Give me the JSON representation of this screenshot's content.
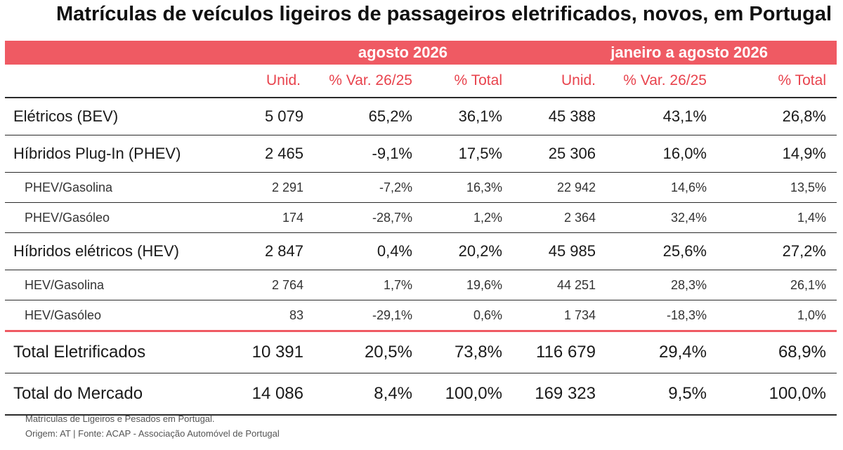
{
  "title": "Matrículas de veículos ligeiros de passageiros eletrificados, novos, em Portugal",
  "colors": {
    "accent": "#ef5a63",
    "header_text": "#e8434d",
    "text": "#1a1a1a"
  },
  "chart_data": {
    "type": "table",
    "groups": [
      "agosto 2026",
      "janeiro a agosto 2026"
    ],
    "columns": [
      "Unid.",
      "% Var. 26/25",
      "% Total",
      "Unid.",
      "% Var. 26/25",
      "% Total"
    ],
    "rows": [
      {
        "label": "Elétricos (BEV)",
        "level": "main",
        "values": [
          "5 079",
          "65,2%",
          "36,1%",
          "45 388",
          "43,1%",
          "26,8%"
        ]
      },
      {
        "label": "Híbridos Plug-In (PHEV)",
        "level": "main",
        "values": [
          "2 465",
          "-9,1%",
          "17,5%",
          "25 306",
          "16,0%",
          "14,9%"
        ]
      },
      {
        "label": "PHEV/Gasolina",
        "level": "sub",
        "values": [
          "2 291",
          "-7,2%",
          "16,3%",
          "22 942",
          "14,6%",
          "13,5%"
        ]
      },
      {
        "label": "PHEV/Gasóleo",
        "level": "sub",
        "values": [
          "174",
          "-28,7%",
          "1,2%",
          "2 364",
          "32,4%",
          "1,4%"
        ]
      },
      {
        "label": "Híbridos elétricos (HEV)",
        "level": "main",
        "values": [
          "2 847",
          "0,4%",
          "20,2%",
          "45 985",
          "25,6%",
          "27,2%"
        ]
      },
      {
        "label": "HEV/Gasolina",
        "level": "sub",
        "values": [
          "2 764",
          "1,7%",
          "19,6%",
          "44 251",
          "28,3%",
          "26,1%"
        ]
      },
      {
        "label": "HEV/Gasóleo",
        "level": "sub",
        "values": [
          "83",
          "-29,1%",
          "0,6%",
          "1 734",
          "-18,3%",
          "1,0%"
        ]
      },
      {
        "label": "Total Eletrificados",
        "level": "total",
        "values": [
          "10 391",
          "20,5%",
          "73,8%",
          "116 679",
          "29,4%",
          "68,9%"
        ]
      },
      {
        "label": "Total do Mercado",
        "level": "total",
        "values": [
          "14 086",
          "8,4%",
          "100,0%",
          "169 323",
          "9,5%",
          "100,0%"
        ]
      }
    ]
  },
  "footer": {
    "line1": "Matrículas de Ligeiros e Pesados em Portugal.",
    "line2": "Origem: AT | Fonte: ACAP - Associação Automóvel de Portugal"
  }
}
